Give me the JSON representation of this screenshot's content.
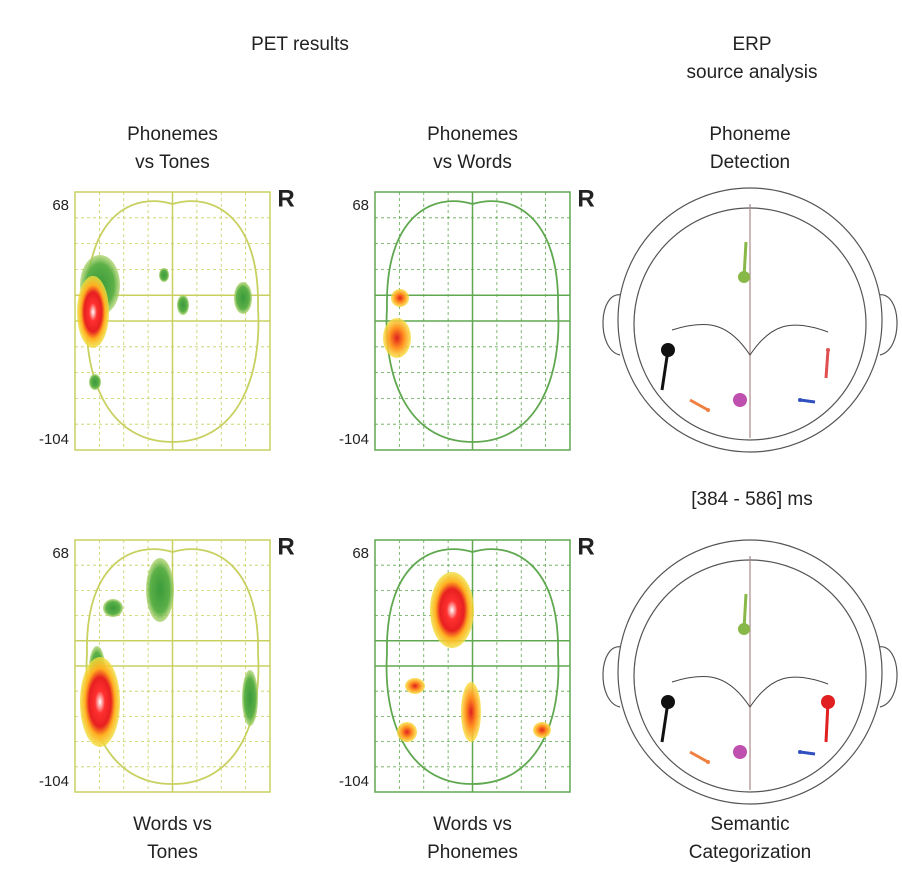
{
  "header": {
    "pet_title": "PET results",
    "erp_title": [
      "ERP",
      "source analysis"
    ]
  },
  "pet_panels": [
    {
      "title": [
        "Phonemes",
        "vs Tones"
      ],
      "top_label": "68",
      "bottom_label": "-104",
      "side": "R"
    },
    {
      "title": [
        "Phonemes",
        "vs Words"
      ],
      "top_label": "68",
      "bottom_label": "-104",
      "side": "R"
    },
    {
      "title": [
        "Words vs",
        "Tones"
      ],
      "top_label": "68",
      "bottom_label": "-104",
      "side": "R"
    },
    {
      "title": [
        "Words vs",
        "Phonemes"
      ],
      "top_label": "68",
      "bottom_label": "-104",
      "side": "R"
    }
  ],
  "erp_panels": [
    {
      "title": [
        "Phoneme",
        "Detection"
      ]
    },
    {
      "title": [
        "Semantic",
        "Categorization"
      ]
    }
  ],
  "time_window": "[384 - 586] ms"
}
